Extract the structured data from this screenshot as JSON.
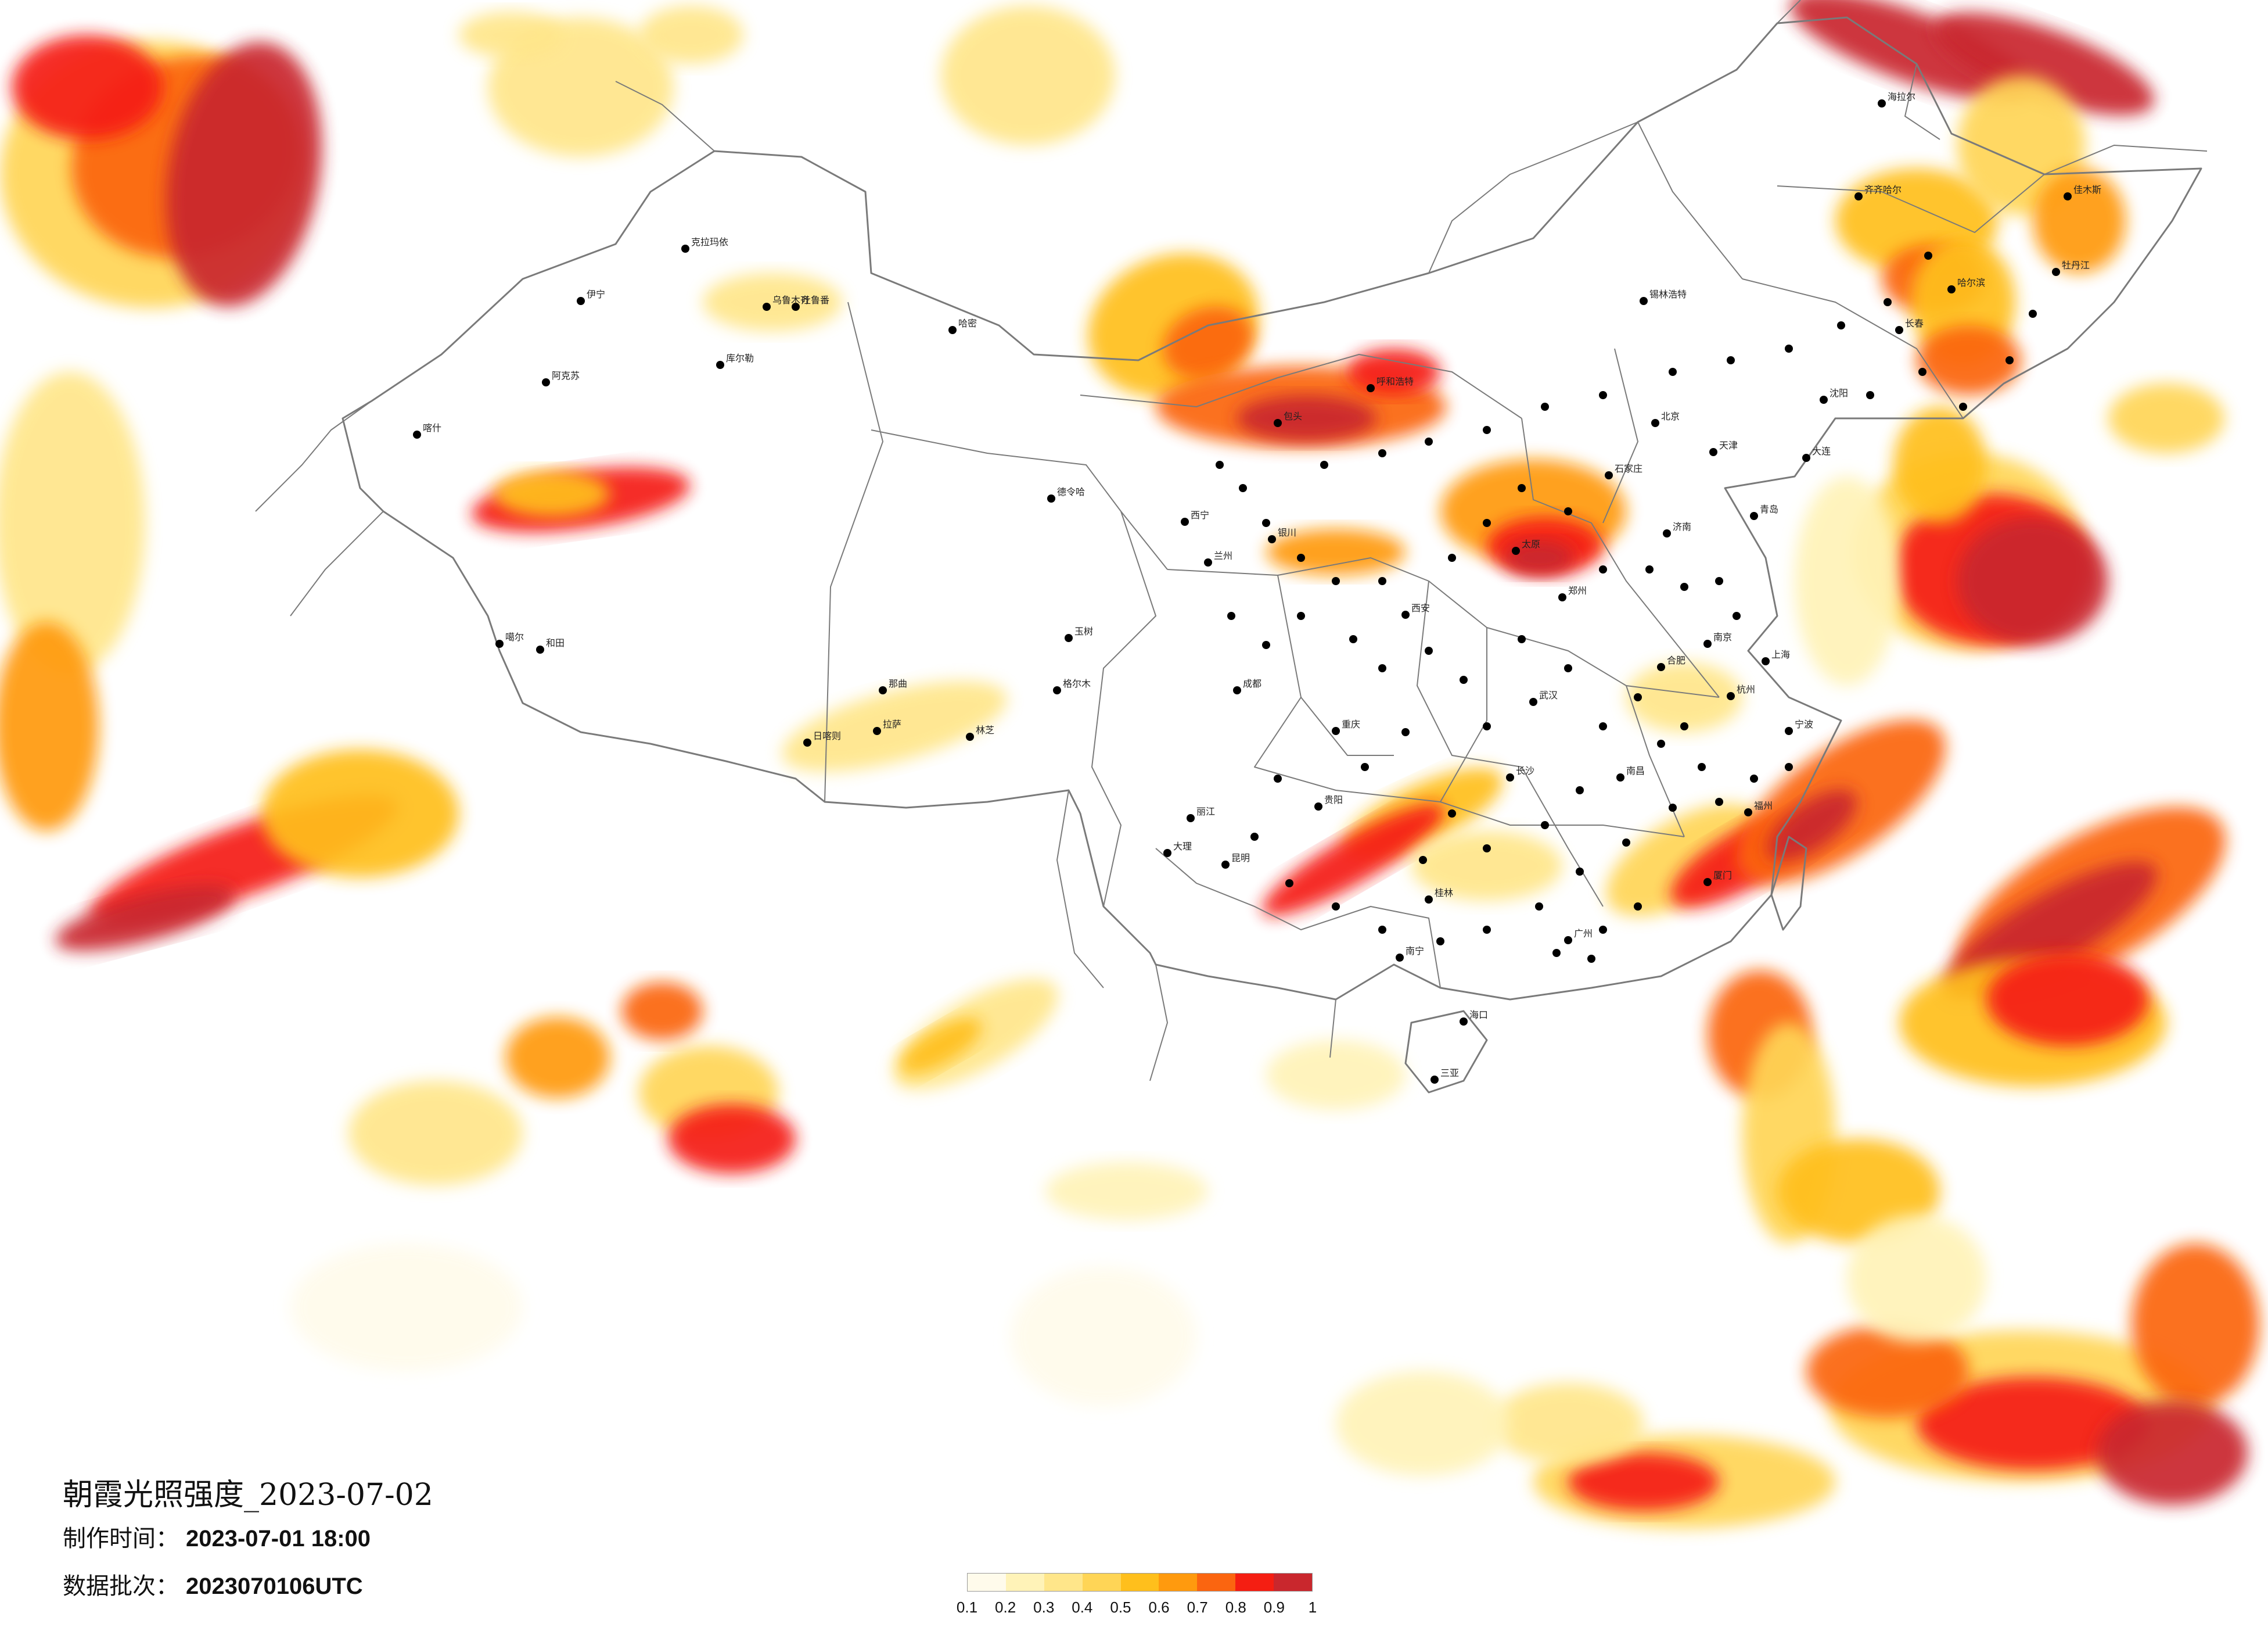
{
  "title": "朝霞光照强度_2023-07-02",
  "info": {
    "made_label": "制作时间：",
    "made_value": "2023-07-01 18:00",
    "batch_label": "数据批次：",
    "batch_value": "2023070106UTC"
  },
  "legend": {
    "colors": [
      "#fffbeb",
      "#fff3b8",
      "#ffe68a",
      "#ffd556",
      "#ffbf1c",
      "#ff9a0e",
      "#fb6510",
      "#f51e12",
      "#c9272d"
    ],
    "ticks": [
      "0.1",
      "0.2",
      "0.3",
      "0.4",
      "0.5",
      "0.6",
      "0.7",
      "0.8",
      "0.9",
      "1"
    ]
  },
  "cities": [
    {
      "name": "克拉玛依"
    },
    {
      "name": "乌鲁木齐"
    },
    {
      "name": "吐鲁番"
    },
    {
      "name": "哈密"
    },
    {
      "name": "伊宁"
    },
    {
      "name": "阿克苏"
    },
    {
      "name": "喀什"
    },
    {
      "name": "库尔勒"
    },
    {
      "name": "和田"
    },
    {
      "name": "德令哈"
    },
    {
      "name": "格尔木"
    },
    {
      "name": "拉萨"
    },
    {
      "name": "日喀则"
    },
    {
      "name": "林芝"
    },
    {
      "name": "那曲"
    },
    {
      "name": "噶尔"
    },
    {
      "name": "玉树"
    },
    {
      "name": "西宁"
    },
    {
      "name": "兰州"
    },
    {
      "name": "银川"
    },
    {
      "name": "呼和浩特"
    },
    {
      "name": "包头"
    },
    {
      "name": "西安"
    },
    {
      "name": "太原"
    },
    {
      "name": "石家庄"
    },
    {
      "name": "北京"
    },
    {
      "name": "天津"
    },
    {
      "name": "济南"
    },
    {
      "name": "郑州"
    },
    {
      "name": "武汉"
    },
    {
      "name": "长沙"
    },
    {
      "name": "南昌"
    },
    {
      "name": "合肥"
    },
    {
      "name": "南京"
    },
    {
      "name": "上海"
    },
    {
      "name": "杭州"
    },
    {
      "name": "福州"
    },
    {
      "name": "广州"
    },
    {
      "name": "南宁"
    },
    {
      "name": "海口"
    },
    {
      "name": "三亚"
    },
    {
      "name": "贵阳"
    },
    {
      "name": "昆明"
    },
    {
      "name": "成都"
    },
    {
      "name": "重庆"
    },
    {
      "name": "沈阳"
    },
    {
      "name": "长春"
    },
    {
      "name": "哈尔滨"
    },
    {
      "name": "大连"
    },
    {
      "name": "青岛"
    },
    {
      "name": "锡林浩特"
    },
    {
      "name": "海拉尔"
    },
    {
      "name": "齐齐哈尔"
    },
    {
      "name": "佳木斯"
    },
    {
      "name": "牡丹江"
    },
    {
      "name": "大理"
    },
    {
      "name": "丽江"
    },
    {
      "name": "桂林"
    },
    {
      "name": "厦门"
    },
    {
      "name": "宁波"
    }
  ]
}
